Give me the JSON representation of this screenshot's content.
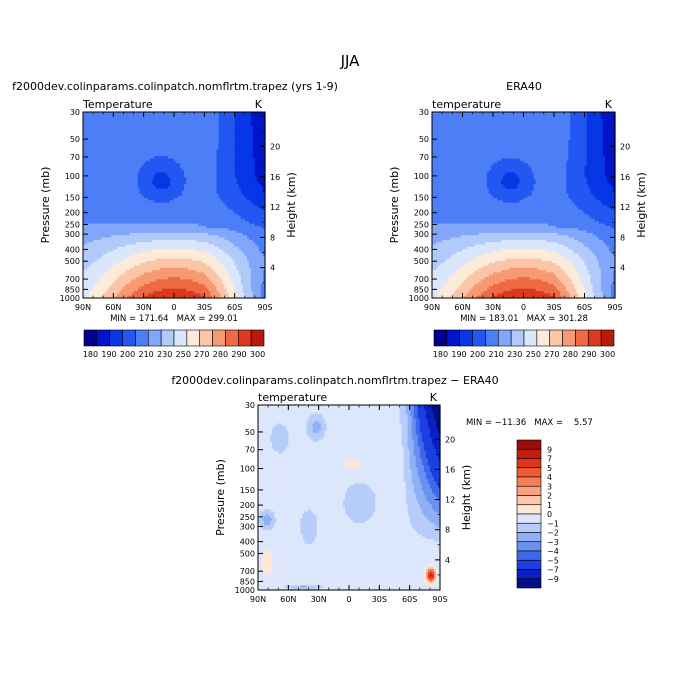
{
  "figure": {
    "title": "JJA"
  },
  "chart_data": [
    {
      "type": "heatmap",
      "title": "f2000dev.colinparams.colinpatch.nomflrtm.trapez (yrs 1-9)",
      "subtitle_left": "Temperature",
      "subtitle_right": "K",
      "xlabel": "",
      "ylabel": "Pressure (mb)",
      "ylabel_right": "Height (km)",
      "x_ticks": [
        "90N",
        "60N",
        "30N",
        "0",
        "30S",
        "60S",
        "90S"
      ],
      "y_ticks": [
        "30",
        "50",
        "70",
        "100",
        "150",
        "200",
        "250",
        "300",
        "400",
        "500",
        "700",
        "850",
        "1000"
      ],
      "height_ticks": [
        "4",
        "8",
        "12",
        "16",
        "20"
      ],
      "min_max_text": "MIN = 171.64   MAX = 299.01",
      "colorbar": {
        "labels": [
          "180",
          "190",
          "200",
          "210",
          "230",
          "250",
          "270",
          "280",
          "290",
          "300"
        ],
        "levels": [
          180,
          190,
          200,
          210,
          220,
          230,
          240,
          250,
          260,
          270,
          280,
          290,
          300
        ],
        "colors": [
          "#00008f",
          "#0014c8",
          "#0636e6",
          "#2357f2",
          "#4d7ef7",
          "#82a6fa",
          "#b1c9fb",
          "#d9e6fc",
          "#fdebd9",
          "#fbc6a8",
          "#f79a73",
          "#ee6a45",
          "#dc3a20",
          "#b81a0d"
        ]
      },
      "value_range": [
        171.64,
        299.01
      ]
    },
    {
      "type": "heatmap",
      "title": "ERA40",
      "subtitle_left": "temperature",
      "subtitle_right": "K",
      "xlabel": "",
      "ylabel": "Pressure (mb)",
      "ylabel_right": "Height (km)",
      "x_ticks": [
        "90N",
        "60N",
        "30N",
        "0",
        "30S",
        "60S",
        "90S"
      ],
      "y_ticks": [
        "30",
        "50",
        "70",
        "100",
        "150",
        "200",
        "250",
        "300",
        "400",
        "500",
        "700",
        "850",
        "1000"
      ],
      "height_ticks": [
        "4",
        "8",
        "12",
        "16",
        "20"
      ],
      "min_max_text": "MIN = 183.01   MAX = 301.28",
      "colorbar": {
        "labels": [
          "180",
          "190",
          "200",
          "210",
          "230",
          "250",
          "270",
          "280",
          "290",
          "300"
        ],
        "levels": [
          180,
          190,
          200,
          210,
          220,
          230,
          240,
          250,
          260,
          270,
          280,
          290,
          300
        ],
        "colors": [
          "#00008f",
          "#0014c8",
          "#0636e6",
          "#2357f2",
          "#4d7ef7",
          "#82a6fa",
          "#b1c9fb",
          "#d9e6fc",
          "#fdebd9",
          "#fbc6a8",
          "#f79a73",
          "#ee6a45",
          "#dc3a20",
          "#b81a0d"
        ]
      },
      "value_range": [
        183.01,
        301.28
      ]
    },
    {
      "type": "heatmap",
      "title": "f2000dev.colinparams.colinpatch.nomflrtm.trapez − ERA40",
      "subtitle_left": "temperature",
      "subtitle_right": "K",
      "xlabel": "",
      "ylabel": "Pressure (mb)",
      "ylabel_right": "Height (km)",
      "x_ticks": [
        "90N",
        "60N",
        "30N",
        "0",
        "30S",
        "60S",
        "90S"
      ],
      "y_ticks": [
        "30",
        "50",
        "70",
        "100",
        "150",
        "200",
        "250",
        "300",
        "400",
        "500",
        "700",
        "850",
        "1000"
      ],
      "height_ticks": [
        "4",
        "8",
        "12",
        "16",
        "20"
      ],
      "min_max_text": "MIN = −11.36   MAX =    5.57",
      "colorbar": {
        "labels": [
          "9",
          "7",
          "5",
          "4",
          "3",
          "2",
          "1",
          "0",
          "−1",
          "−2",
          "−3",
          "−4",
          "−5",
          "−7",
          "−9"
        ],
        "levels": [
          9,
          7,
          5,
          4,
          3,
          2,
          1,
          0,
          -1,
          -2,
          -3,
          -4,
          -5,
          -7,
          -9
        ],
        "colors": [
          "#9b0c0c",
          "#c2200f",
          "#de3618",
          "#ef5a32",
          "#f57e57",
          "#f9a380",
          "#fcc7aa",
          "#fde8d8",
          "#dde7fb",
          "#b7cdf9",
          "#8fb0f5",
          "#6a91f0",
          "#3f69ea",
          "#1b3fe0",
          "#0a1fc4",
          "#020f85"
        ]
      },
      "value_range": [
        -11.36,
        5.57
      ]
    }
  ]
}
